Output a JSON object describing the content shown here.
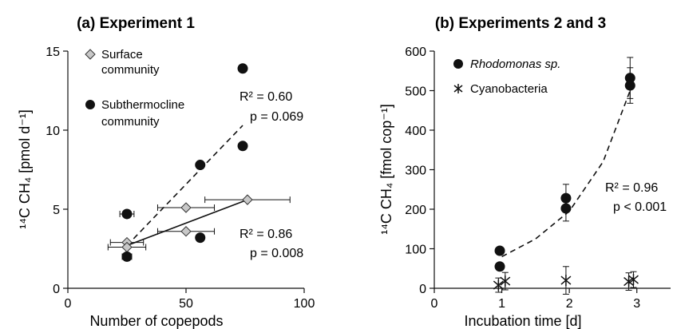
{
  "chart_data": [
    {
      "panel": "a",
      "type": "scatter",
      "title": "(a) Experiment 1",
      "xlabel": "Number of copepods",
      "ylabel": "¹⁴C CH₄ [pmol d⁻¹]",
      "xlim": [
        0,
        100
      ],
      "ylim": [
        0,
        15
      ],
      "xticks": [
        0,
        50,
        100
      ],
      "yticks": [
        0,
        5,
        10,
        15
      ],
      "grid": false,
      "legend_position": "top-left",
      "series": [
        {
          "name": "Surface community",
          "marker": "diamond",
          "color": "#c8c8c8",
          "points": [
            {
              "x": 25,
              "y": 2.9,
              "xerr": 7
            },
            {
              "x": 25,
              "y": 2.6,
              "xerr": 8
            },
            {
              "x": 50,
              "y": 5.1,
              "xerr": 12
            },
            {
              "x": 50,
              "y": 3.6,
              "xerr": 12
            },
            {
              "x": 76,
              "y": 5.6,
              "xerr": 18
            }
          ],
          "fit": {
            "style": "solid",
            "x": [
              25,
              76
            ],
            "y": [
              2.7,
              5.6
            ]
          },
          "annotation": [
            "R² = 0.86",
            "p = 0.008"
          ]
        },
        {
          "name": "Subthermocline community",
          "marker": "circle",
          "color": "#111111",
          "points": [
            {
              "x": 25,
              "y": 4.7,
              "xerr": 3
            },
            {
              "x": 25,
              "y": 2.0,
              "xerr": 2
            },
            {
              "x": 56,
              "y": 7.8,
              "xerr": 0
            },
            {
              "x": 56,
              "y": 3.2,
              "xerr": 0
            },
            {
              "x": 74,
              "y": 13.9,
              "xerr": 0
            },
            {
              "x": 74,
              "y": 9.0,
              "xerr": 0
            }
          ],
          "fit": {
            "style": "dashed",
            "x": [
              25,
              74
            ],
            "y": [
              2.7,
              10.3
            ]
          },
          "annotation": [
            "R² = 0.60",
            "p = 0.069"
          ]
        }
      ]
    },
    {
      "panel": "b",
      "type": "scatter",
      "title": "(b) Experiments 2 and 3",
      "xlabel": "Incubation time [d]",
      "ylabel": "¹⁴C CH₄ [fmol cop⁻¹]",
      "xlim": [
        0,
        3.5
      ],
      "ylim": [
        0,
        600
      ],
      "xticks": [
        0,
        1,
        2,
        3
      ],
      "yticks": [
        0,
        100,
        200,
        300,
        400,
        500,
        600
      ],
      "grid": false,
      "legend_position": "top-left",
      "series": [
        {
          "name": "Rhodomonas sp.",
          "marker": "circle",
          "color": "#111111",
          "points": [
            {
              "x": 0.97,
              "y": 95,
              "yerr": 0
            },
            {
              "x": 0.97,
              "y": 55,
              "yerr": 0
            },
            {
              "x": 1.95,
              "y": 228,
              "yerr": 35
            },
            {
              "x": 1.95,
              "y": 202,
              "yerr": 32
            },
            {
              "x": 2.9,
              "y": 532,
              "yerr": 52
            },
            {
              "x": 2.9,
              "y": 513,
              "yerr": 45
            }
          ],
          "fit": {
            "style": "dashed",
            "curve": "exponential",
            "x": [
              1.0,
              1.5,
              2.0,
              2.5,
              2.9
            ],
            "y": [
              80,
              125,
              195,
              320,
              500
            ]
          },
          "annotation": [
            "R² = 0.96",
            "p < 0.001"
          ]
        },
        {
          "name": "Cyanobacteria",
          "marker": "asterisk",
          "color": "#111111",
          "points": [
            {
              "x": 0.95,
              "y": 8,
              "yerr": 18
            },
            {
              "x": 1.05,
              "y": 18,
              "yerr": 22
            },
            {
              "x": 1.95,
              "y": 20,
              "yerr": 35
            },
            {
              "x": 2.88,
              "y": 17,
              "yerr": 22
            },
            {
              "x": 2.95,
              "y": 22,
              "yerr": 20
            }
          ]
        }
      ]
    }
  ]
}
